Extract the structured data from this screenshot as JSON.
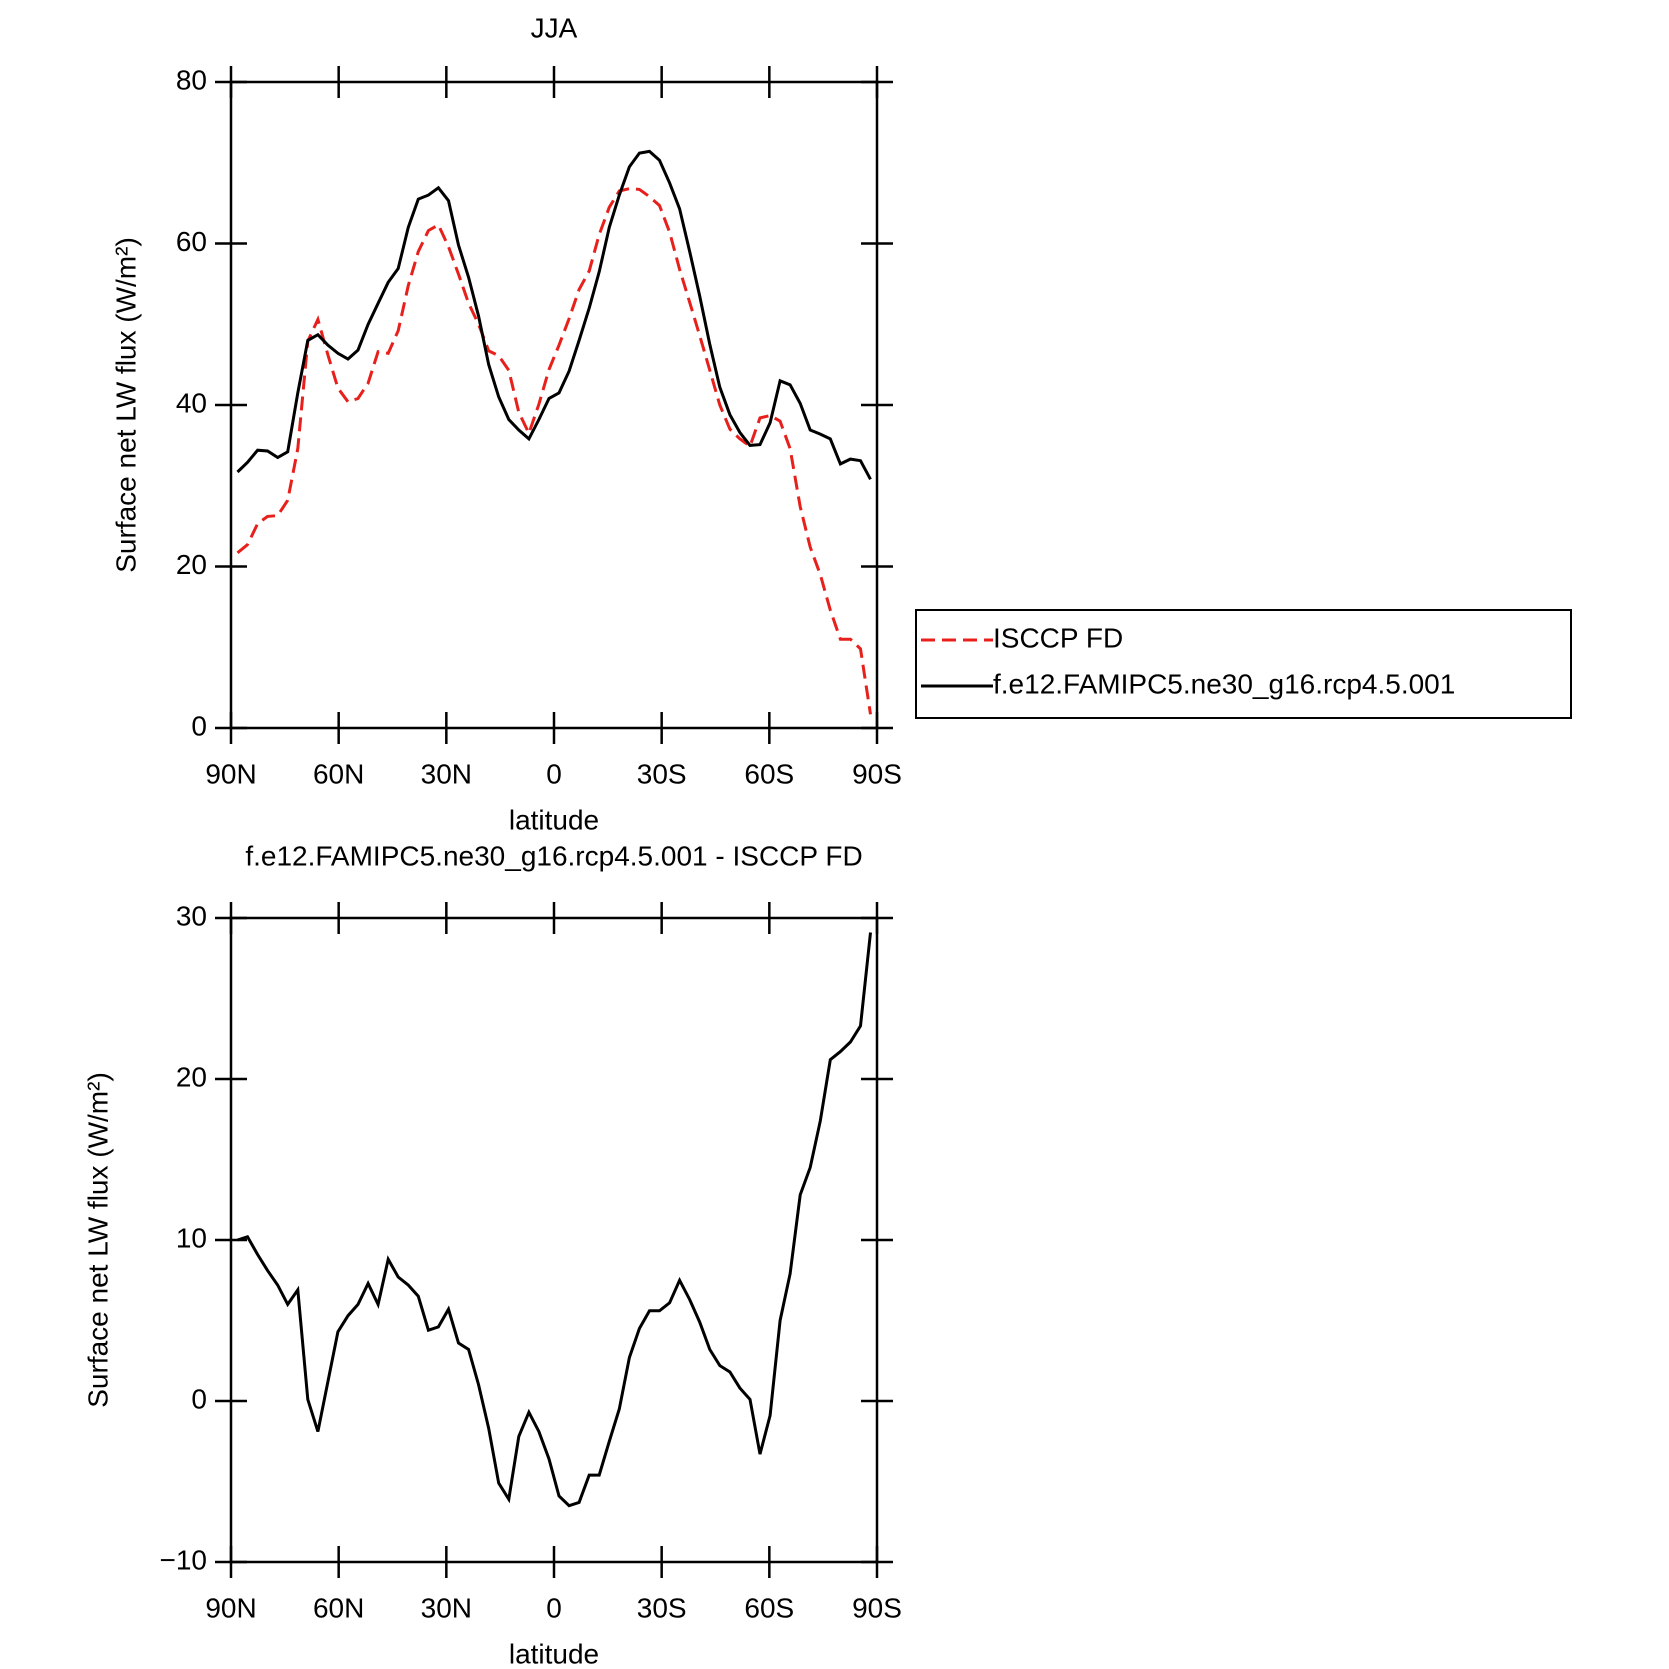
{
  "chart_data": [
    {
      "type": "line",
      "title": "JJA",
      "xlabel": "latitude",
      "ylabel": "Surface net LW flux (W/m²)",
      "x": [
        88.2,
        85.4,
        82.6,
        79.8,
        77,
        74.2,
        71.4,
        68.6,
        65.8,
        63,
        60.2,
        57.4,
        54.6,
        51.8,
        49,
        46.2,
        43.4,
        40.6,
        37.8,
        35,
        32.2,
        29.4,
        26.6,
        23.8,
        21,
        18.2,
        15.4,
        12.6,
        9.8,
        7,
        4.2,
        1.4,
        -1.4,
        -4.2,
        -7,
        -9.8,
        -12.6,
        -15.4,
        -18.2,
        -21,
        -23.8,
        -26.6,
        -29.4,
        -32.2,
        -35,
        -37.8,
        -40.6,
        -43.4,
        -46.2,
        -49,
        -51.8,
        -54.6,
        -57.4,
        -60.2,
        -63,
        -65.8,
        -68.6,
        -71.4,
        -74.2,
        -77,
        -79.8,
        -82.6,
        -85.4,
        -88.2
      ],
      "xlim": [
        90,
        -90
      ],
      "xticks": [
        {
          "value": 90,
          "label": "90N"
        },
        {
          "value": 60,
          "label": "60N"
        },
        {
          "value": 30,
          "label": "30N"
        },
        0,
        {
          "value": -30,
          "label": "30S"
        },
        {
          "value": -60,
          "label": "60S"
        },
        {
          "value": -90,
          "label": "90S"
        }
      ],
      "ylim": [
        0,
        80
      ],
      "yticks": [
        0,
        20,
        40,
        60,
        80
      ],
      "legend": "right",
      "series": [
        {
          "name": "ISCCP FD",
          "color": "#e8201c",
          "dashed": true,
          "values": [
            21.7,
            22.7,
            25.3,
            26.2,
            26.3,
            28.2,
            34.6,
            47.9,
            50.6,
            46.2,
            42.1,
            40.4,
            40.8,
            42.7,
            46.6,
            46.4,
            49.2,
            54.8,
            59.0,
            61.6,
            62.3,
            59.6,
            56.2,
            52.6,
            50.0,
            46.7,
            46.1,
            44.3,
            39.1,
            36.5,
            40.1,
            44.4,
            47.4,
            50.7,
            54.3,
            56.6,
            61.1,
            64.5,
            66.5,
            66.8,
            66.7,
            65.8,
            64.7,
            61.4,
            56.8,
            52.7,
            48.6,
            44.3,
            40.0,
            37.0,
            35.8,
            34.9,
            38.4,
            38.7,
            38.0,
            34.6,
            27.4,
            22.4,
            19.0,
            14.6,
            11.0,
            11.0,
            9.8,
            1.7
          ]
        },
        {
          "name": "f.e12.FAMIPC5.ne30_g16.rcp4.5.001",
          "color": "#000000",
          "dashed": false,
          "values": [
            31.7,
            32.9,
            34.4,
            34.3,
            33.5,
            34.2,
            41.5,
            48.0,
            48.7,
            47.4,
            46.4,
            45.7,
            46.8,
            50.0,
            52.6,
            55.2,
            56.9,
            62.0,
            65.5,
            66.0,
            66.9,
            65.3,
            59.8,
            55.8,
            51.0,
            45.0,
            41.0,
            38.2,
            36.9,
            35.8,
            38.2,
            40.8,
            41.5,
            44.2,
            48.0,
            52.0,
            56.5,
            62.0,
            66.0,
            69.5,
            71.2,
            71.4,
            70.3,
            67.5,
            64.3,
            59.0,
            53.5,
            47.5,
            42.2,
            38.8,
            36.6,
            35.0,
            35.1,
            37.8,
            43.0,
            42.5,
            40.2,
            36.9,
            36.4,
            35.8,
            32.7,
            33.3,
            33.1,
            30.8
          ]
        }
      ]
    },
    {
      "type": "line",
      "title": "f.e12.FAMIPC5.ne30_g16.rcp4.5.001 - ISCCP FD",
      "xlabel": "latitude",
      "ylabel": "Surface net LW flux (W/m²)",
      "x": [
        88.2,
        85.4,
        82.6,
        79.8,
        77,
        74.2,
        71.4,
        68.6,
        65.8,
        63,
        60.2,
        57.4,
        54.6,
        51.8,
        49,
        46.2,
        43.4,
        40.6,
        37.8,
        35,
        32.2,
        29.4,
        26.6,
        23.8,
        21,
        18.2,
        15.4,
        12.6,
        9.8,
        7,
        4.2,
        1.4,
        -1.4,
        -4.2,
        -7,
        -9.8,
        -12.6,
        -15.4,
        -18.2,
        -21,
        -23.8,
        -26.6,
        -29.4,
        -32.2,
        -35,
        -37.8,
        -40.6,
        -43.4,
        -46.2,
        -49,
        -51.8,
        -54.6,
        -57.4,
        -60.2,
        -63,
        -65.8,
        -68.6,
        -71.4,
        -74.2,
        -77,
        -79.8,
        -82.6,
        -85.4,
        -88.2
      ],
      "xlim": [
        90,
        -90
      ],
      "xticks": [
        {
          "value": 90,
          "label": "90N"
        },
        {
          "value": 60,
          "label": "60N"
        },
        {
          "value": 30,
          "label": "30N"
        },
        0,
        {
          "value": -30,
          "label": "30S"
        },
        {
          "value": -60,
          "label": "60S"
        },
        {
          "value": -90,
          "label": "90S"
        }
      ],
      "ylim": [
        -10,
        30
      ],
      "yticks": [
        {
          "value": -10,
          "label": "−10"
        },
        0,
        10,
        20,
        30
      ],
      "series": [
        {
          "color": "#000000",
          "dashed": false,
          "values": [
            10.0,
            10.2,
            9.1,
            8.1,
            7.2,
            6.0,
            6.9,
            0.1,
            -1.9,
            1.2,
            4.3,
            5.3,
            6.0,
            7.3,
            6.0,
            8.8,
            7.7,
            7.2,
            6.5,
            4.4,
            4.6,
            5.7,
            3.6,
            3.2,
            1.0,
            -1.7,
            -5.1,
            -6.1,
            -2.2,
            -0.7,
            -1.9,
            -3.6,
            -5.9,
            -6.5,
            -6.3,
            -4.6,
            -4.6,
            -2.5,
            -0.5,
            2.7,
            4.5,
            5.6,
            5.6,
            6.1,
            7.5,
            6.3,
            4.9,
            3.2,
            2.2,
            1.8,
            0.8,
            0.1,
            -3.3,
            -0.9,
            5.0,
            7.9,
            12.8,
            14.5,
            17.4,
            21.2,
            21.7,
            22.3,
            23.3,
            29.1
          ]
        }
      ]
    }
  ]
}
